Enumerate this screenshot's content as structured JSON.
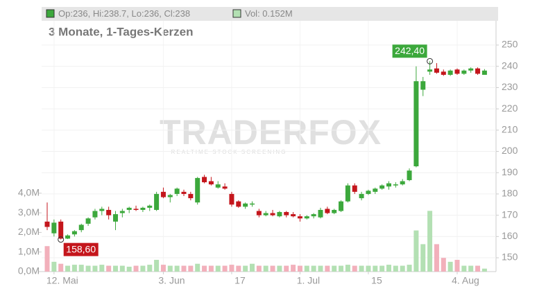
{
  "chart_data": {
    "type": "candlestick",
    "header": "Op:236, Hi:238.7, Lo:236, Cl:238",
    "volume_label": "Vol: 0.152M",
    "subtitle": "3 Monate, 1-Tages-Kerzen",
    "watermark": "TRADERFOX",
    "watermark_sub": "REALTIME STOCK SCREENING",
    "categories": [
      null,
      "12. Mai",
      null,
      null,
      null,
      null,
      null,
      null,
      null,
      null,
      null,
      null,
      null,
      null,
      null,
      null,
      null,
      "3. Jun",
      null,
      null,
      null,
      null,
      null,
      null,
      null,
      null,
      null,
      "17",
      null,
      null,
      null,
      null,
      null,
      null,
      null,
      null,
      null,
      "1. Jul",
      null,
      null,
      null,
      null,
      null,
      null,
      null,
      null,
      null,
      "15",
      null,
      null,
      null,
      null,
      null,
      null,
      null,
      null,
      null,
      null,
      null,
      null,
      "4. Aug",
      null,
      null,
      null,
      null
    ],
    "open": [
      167,
      161.5,
      167,
      159,
      161,
      163,
      166,
      169,
      172,
      172.5,
      167,
      171,
      172.5,
      173,
      172.5,
      173.5,
      172.5,
      181,
      178.5,
      180,
      181,
      180,
      176,
      188,
      186,
      183,
      183.5,
      180,
      176.5,
      174,
      175,
      172,
      170,
      171,
      169.5,
      171.5,
      170.5,
      169.5,
      168.5,
      169.5,
      169,
      173,
      171,
      172,
      176.5,
      184,
      178,
      180,
      181,
      182.5,
      183.5,
      184,
      184.5,
      186.5,
      193,
      229,
      237.5,
      239,
      237.5,
      236,
      238.5,
      236.5,
      238,
      239,
      236
    ],
    "high": [
      176,
      168,
      168,
      161,
      163,
      166,
      169,
      173,
      174,
      174,
      172,
      173,
      174,
      174.5,
      174,
      175,
      181,
      183,
      180,
      183,
      182,
      181,
      188,
      189,
      188,
      186,
      185,
      181,
      177,
      176,
      176.5,
      173,
      172,
      172.5,
      172,
      172,
      171.5,
      170.5,
      170,
      171,
      173.5,
      174,
      173,
      177,
      185,
      185,
      181,
      182,
      183,
      184.5,
      186,
      185.5,
      187,
      192,
      240,
      235,
      242.4,
      241.5,
      238.5,
      238.5,
      239,
      238.5,
      239.5,
      239.5,
      238.7
    ],
    "low": [
      163,
      160,
      158.6,
      158.8,
      160,
      162,
      165,
      168,
      170,
      168,
      163,
      169,
      171,
      172,
      171.5,
      172,
      172,
      178,
      176,
      179,
      179,
      177,
      175,
      185,
      184,
      182.5,
      182,
      174,
      173.5,
      173,
      174,
      169,
      169.5,
      169.5,
      169,
      169,
      169,
      167,
      168,
      168.5,
      168.5,
      170.5,
      170.5,
      171.5,
      176,
      180,
      177,
      179.5,
      180,
      182,
      182,
      183,
      184,
      186,
      192.5,
      226,
      236,
      236.5,
      235.5,
      235.5,
      236,
      236,
      237,
      236,
      236
    ],
    "close": [
      164.5,
      166.5,
      159,
      160.5,
      162.5,
      165.5,
      168.5,
      172,
      173,
      170,
      170.5,
      172,
      173.5,
      172.5,
      173.5,
      174.5,
      180,
      178.5,
      179.5,
      182.5,
      180,
      178,
      187.5,
      185.5,
      184.5,
      184.5,
      182.5,
      175,
      174,
      175.5,
      175.5,
      170,
      171,
      170,
      171.5,
      170,
      169.5,
      168.5,
      169.5,
      170.5,
      172.5,
      171,
      172.5,
      176.5,
      184,
      181,
      180,
      181.5,
      182.5,
      184,
      185,
      184.5,
      186,
      191,
      233,
      233,
      238.5,
      237,
      236,
      238,
      236.5,
      238,
      239,
      236.5,
      238
    ],
    "volume": [
      1.3,
      0.5,
      0.4,
      0.3,
      0.35,
      0.35,
      0.3,
      0.3,
      0.35,
      0.3,
      0.3,
      0.3,
      0.25,
      0.3,
      0.3,
      0.35,
      0.6,
      0.35,
      0.3,
      0.3,
      0.3,
      0.3,
      0.4,
      0.3,
      0.3,
      0.3,
      0.3,
      0.35,
      0.3,
      0.3,
      0.4,
      0.3,
      0.3,
      0.3,
      0.3,
      0.3,
      0.35,
      0.3,
      0.3,
      0.3,
      0.3,
      0.3,
      0.3,
      0.3,
      0.35,
      0.3,
      0.3,
      0.3,
      0.3,
      0.3,
      0.35,
      0.3,
      0.3,
      0.35,
      2.1,
      1.4,
      3.1,
      1.4,
      0.7,
      0.5,
      0.6,
      0.3,
      0.3,
      0.3,
      0.152
    ],
    "up_color": "#3ca83c",
    "down_color": "#c4161c",
    "up_volume_color": "#b3e0b3",
    "down_volume_color": "#f2b0bb",
    "ylim": [
      143.5,
      261.4
    ],
    "yticks": [
      150,
      160,
      170,
      180,
      190,
      200,
      210,
      220,
      230,
      240,
      250
    ],
    "y2lim": [
      0,
      12.8
    ],
    "y2ticks": [
      {
        "value": 0,
        "label": "0,0M"
      },
      {
        "value": 1,
        "label": "1,0M"
      },
      {
        "value": 2,
        "label": "2,0M"
      },
      {
        "value": 3,
        "label": "3,0M"
      },
      {
        "value": 4,
        "label": "4,0M"
      }
    ],
    "annotations": [
      {
        "label": "242,40",
        "value": 242.4
      },
      {
        "label": "158,60",
        "value": 158.6
      }
    ],
    "grid": true
  }
}
